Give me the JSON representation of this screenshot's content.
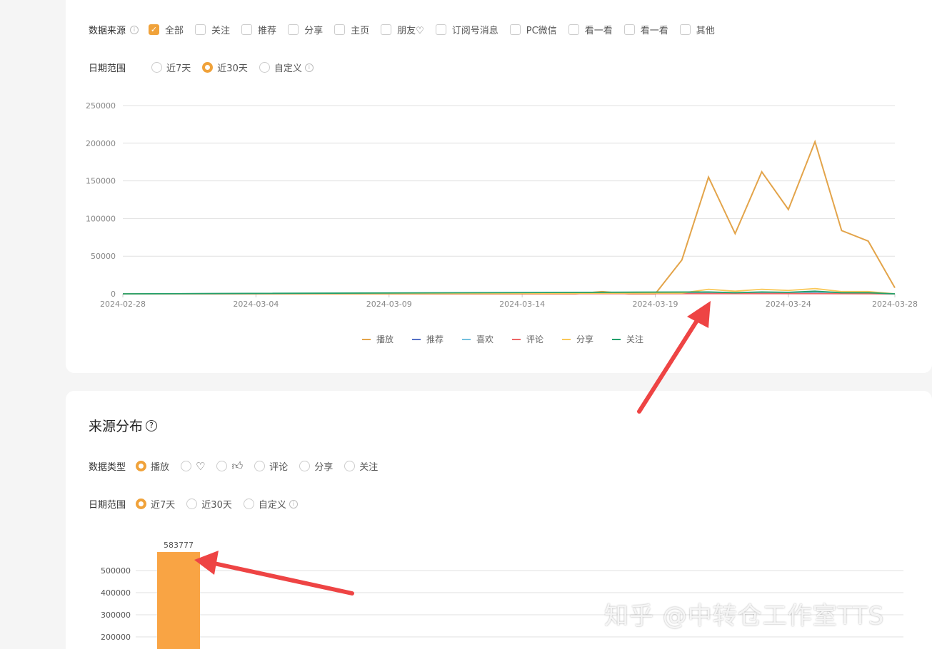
{
  "trend": {
    "source_label": "数据来源",
    "sources": [
      {
        "label": "全部",
        "checked": true
      },
      {
        "label": "关注",
        "checked": false
      },
      {
        "label": "推荐",
        "checked": false
      },
      {
        "label": "分享",
        "checked": false
      },
      {
        "label": "主页",
        "checked": false
      },
      {
        "label": "朋友♡",
        "checked": false
      },
      {
        "label": "订阅号消息",
        "checked": false
      },
      {
        "label": "PC微信",
        "checked": false
      },
      {
        "label": "看一看",
        "checked": false
      },
      {
        "label": "看一看",
        "checked": false
      },
      {
        "label": "其他",
        "checked": false
      }
    ],
    "date_label": "日期范围",
    "date_options": [
      {
        "label": "近7天",
        "selected": false
      },
      {
        "label": "近30天",
        "selected": true
      },
      {
        "label": "自定义",
        "selected": false,
        "info": true
      }
    ]
  },
  "distribution": {
    "title": "来源分布",
    "type_label": "数据类型",
    "type_options": [
      {
        "label": "播放",
        "selected": true
      },
      {
        "label": "",
        "icon": "heart-icon",
        "selected": false
      },
      {
        "label": "",
        "icon": "thumbs-up-icon",
        "selected": false
      },
      {
        "label": "评论",
        "selected": false
      },
      {
        "label": "分享",
        "selected": false
      },
      {
        "label": "关注",
        "selected": false
      }
    ],
    "date_label": "日期范围",
    "date_options": [
      {
        "label": "近7天",
        "selected": true
      },
      {
        "label": "近30天",
        "selected": false
      },
      {
        "label": "自定义",
        "selected": false,
        "info": true
      }
    ]
  },
  "watermark": "知乎 @中转仓工作室TTS",
  "chart_data": [
    {
      "type": "line",
      "ylim": [
        0,
        250000
      ],
      "yticks": [
        "0",
        "50000",
        "100000",
        "150000",
        "200000",
        "250000"
      ],
      "x_start": "2024-02-28",
      "x_end": "2024-03-28",
      "xticks": [
        "2024-02-28",
        "2024-03-04",
        "2024-03-09",
        "2024-03-14",
        "2024-03-19",
        "2024-03-24",
        "2024-03-28"
      ],
      "grid": true,
      "legend": "bottom",
      "series": [
        {
          "name": "播放",
          "color": "#e3a44a",
          "points": [
            [
              "2024-03-16",
              0
            ],
            [
              "2024-03-17",
              3000
            ],
            [
              "2024-03-18",
              0
            ],
            [
              "2024-03-19",
              0
            ],
            [
              "2024-03-20",
              45000
            ],
            [
              "2024-03-21",
              155000
            ],
            [
              "2024-03-22",
              80000
            ],
            [
              "2024-03-23",
              162000
            ],
            [
              "2024-03-24",
              112000
            ],
            [
              "2024-03-25",
              202000
            ],
            [
              "2024-03-26",
              84000
            ],
            [
              "2024-03-27",
              70000
            ],
            [
              "2024-03-28",
              8000
            ]
          ]
        },
        {
          "name": "推荐",
          "color": "#5470c6",
          "points": [
            [
              "2024-03-21",
              1500
            ],
            [
              "2024-03-23",
              1500
            ],
            [
              "2024-03-25",
              1500
            ],
            [
              "2024-03-28",
              0
            ]
          ]
        },
        {
          "name": "喜欢",
          "color": "#73c0de",
          "points": [
            [
              "2024-03-21",
              1000
            ],
            [
              "2024-03-25",
              1200
            ],
            [
              "2024-03-28",
              0
            ]
          ]
        },
        {
          "name": "评论",
          "color": "#ee6666",
          "points": [
            [
              "2024-03-21",
              300
            ],
            [
              "2024-03-25",
              300
            ],
            [
              "2024-03-28",
              0
            ]
          ]
        },
        {
          "name": "分享",
          "color": "#fac858",
          "points": [
            [
              "2024-03-20",
              1000
            ],
            [
              "2024-03-21",
              6000
            ],
            [
              "2024-03-22",
              3500
            ],
            [
              "2024-03-23",
              6000
            ],
            [
              "2024-03-24",
              4500
            ],
            [
              "2024-03-25",
              7000
            ],
            [
              "2024-03-26",
              3000
            ],
            [
              "2024-03-27",
              3000
            ],
            [
              "2024-03-28",
              0
            ]
          ]
        },
        {
          "name": "关注",
          "color": "#22a06b",
          "points": [
            [
              "2024-03-21",
              2500
            ],
            [
              "2024-03-22",
              1500
            ],
            [
              "2024-03-23",
              2500
            ],
            [
              "2024-03-24",
              2000
            ],
            [
              "2024-03-25",
              3500
            ],
            [
              "2024-03-26",
              1500
            ],
            [
              "2024-03-27",
              1500
            ],
            [
              "2024-03-28",
              0
            ]
          ]
        }
      ]
    },
    {
      "type": "bar",
      "yticks": [
        "200000",
        "300000",
        "400000",
        "500000"
      ],
      "grid": true,
      "values": [
        583777
      ],
      "data_labels": [
        "583777"
      ],
      "color": "#f9a444"
    }
  ]
}
